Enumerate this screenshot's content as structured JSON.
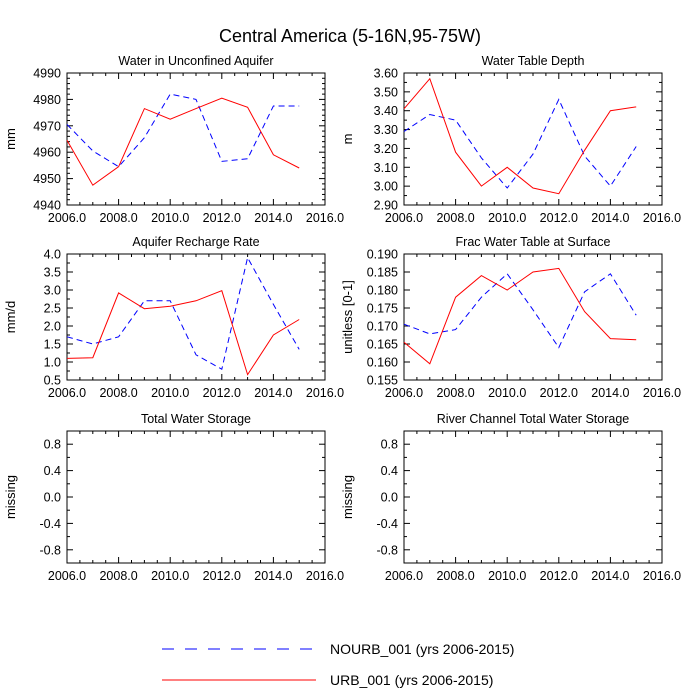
{
  "figure": {
    "title": "Central America (5-16N,95-75W)",
    "colors": {
      "NOURB_001": "#0000ff",
      "URB_001": "#ff0000",
      "axis": "#000000"
    }
  },
  "legend": {
    "placement": "bottom-center",
    "entries": [
      {
        "label": "NOURB_001 (yrs 2006-2015)",
        "color": "#0000ff",
        "style": "dashed"
      },
      {
        "label": "URB_001 (yrs 2006-2015)",
        "color": "#ff0000",
        "style": "solid"
      }
    ]
  },
  "chart_data": [
    {
      "type": "line",
      "title": "Water in Unconfined Aquifer",
      "ylabel": "mm",
      "xlim": [
        2006,
        2016
      ],
      "ylim": [
        4940,
        4990
      ],
      "xticks": [
        2006,
        2008,
        2010,
        2012,
        2014,
        2016
      ],
      "xticklabels": [
        "2006.0",
        "2008.0",
        "2010.0",
        "2012.0",
        "2014.0",
        "2016.0"
      ],
      "yticks": [
        4940,
        4950,
        4960,
        4970,
        4980,
        4990
      ],
      "yticklabels": [
        "4940",
        "4950",
        "4960",
        "4970",
        "4980",
        "4990"
      ],
      "yminor": [
        4942,
        4944,
        4946,
        4948,
        4952,
        4954,
        4956,
        4958,
        4962,
        4964,
        4966,
        4968,
        4972,
        4974,
        4976,
        4978,
        4982,
        4984,
        4986,
        4988
      ],
      "x": [
        2006,
        2007,
        2008,
        2009,
        2010,
        2011,
        2012,
        2013,
        2014,
        2015
      ],
      "series": [
        {
          "name": "NOURB_001",
          "color": "#0000ff",
          "dash": true,
          "values": [
            4970.5,
            4960.5,
            4954.5,
            4965.5,
            4982,
            4980,
            4956.5,
            4957.5,
            4977.5,
            4977.5
          ]
        },
        {
          "name": "URB_001",
          "color": "#ff0000",
          "dash": false,
          "values": [
            4964.5,
            4947.5,
            4954.5,
            4976.5,
            4972.5,
            4976.5,
            4980.5,
            4977,
            4959,
            4954
          ]
        }
      ]
    },
    {
      "type": "line",
      "title": "Water Table Depth",
      "ylabel": "m",
      "xlim": [
        2006,
        2016
      ],
      "ylim": [
        2.9,
        3.6
      ],
      "xticks": [
        2006,
        2008,
        2010,
        2012,
        2014,
        2016
      ],
      "xticklabels": [
        "2006.0",
        "2008.0",
        "2010.0",
        "2012.0",
        "2014.0",
        "2016.0"
      ],
      "yticks": [
        2.9,
        3.0,
        3.1,
        3.2,
        3.3,
        3.4,
        3.5,
        3.6
      ],
      "yticklabels": [
        "2.90",
        "3.00",
        "3.10",
        "3.20",
        "3.30",
        "3.40",
        "3.50",
        "3.60"
      ],
      "yminor": [
        2.95,
        3.05,
        3.15,
        3.25,
        3.35,
        3.45,
        3.55
      ],
      "x": [
        2006,
        2007,
        2008,
        2009,
        2010,
        2011,
        2012,
        2013,
        2014,
        2015
      ],
      "series": [
        {
          "name": "NOURB_001",
          "color": "#0000ff",
          "dash": true,
          "values": [
            3.29,
            3.38,
            3.35,
            3.15,
            2.99,
            3.17,
            3.46,
            3.16,
            3.0,
            3.21
          ]
        },
        {
          "name": "URB_001",
          "color": "#ff0000",
          "dash": false,
          "values": [
            3.41,
            3.57,
            3.18,
            3.0,
            3.1,
            2.99,
            2.96,
            3.19,
            3.4,
            3.42
          ]
        }
      ]
    },
    {
      "type": "line",
      "title": "Aquifer Recharge Rate",
      "ylabel": "mm/d",
      "xlim": [
        2006,
        2016
      ],
      "ylim": [
        0.5,
        4.0
      ],
      "xticks": [
        2006,
        2008,
        2010,
        2012,
        2014,
        2016
      ],
      "xticklabels": [
        "2006.0",
        "2008.0",
        "2010.0",
        "2012.0",
        "2014.0",
        "2016.0"
      ],
      "yticks": [
        0.5,
        1.0,
        1.5,
        2.0,
        2.5,
        3.0,
        3.5,
        4.0
      ],
      "yticklabels": [
        "0.5",
        "1.0",
        "1.5",
        "2.0",
        "2.5",
        "3.0",
        "3.5",
        "4.0"
      ],
      "yminor": [
        0.75,
        1.25,
        1.75,
        2.25,
        2.75,
        3.25,
        3.75
      ],
      "x": [
        2006,
        2007,
        2008,
        2009,
        2010,
        2011,
        2012,
        2013,
        2014,
        2015
      ],
      "series": [
        {
          "name": "NOURB_001",
          "color": "#0000ff",
          "dash": true,
          "values": [
            1.7,
            1.5,
            1.7,
            2.7,
            2.7,
            1.2,
            0.8,
            3.9,
            2.6,
            1.35
          ]
        },
        {
          "name": "URB_001",
          "color": "#ff0000",
          "dash": false,
          "values": [
            1.1,
            1.12,
            2.92,
            2.48,
            2.55,
            2.7,
            2.98,
            0.65,
            1.75,
            2.18
          ]
        }
      ]
    },
    {
      "type": "line",
      "title": "Frac Water Table at Surface",
      "ylabel": "unitless [0-1]",
      "xlim": [
        2006,
        2016
      ],
      "ylim": [
        0.155,
        0.19
      ],
      "xticks": [
        2006,
        2008,
        2010,
        2012,
        2014,
        2016
      ],
      "xticklabels": [
        "2006.0",
        "2008.0",
        "2010.0",
        "2012.0",
        "2014.0",
        "2016.0"
      ],
      "yticks": [
        0.155,
        0.16,
        0.165,
        0.17,
        0.175,
        0.18,
        0.185,
        0.19
      ],
      "yticklabels": [
        "0.155",
        "0.160",
        "0.165",
        "0.170",
        "0.175",
        "0.180",
        "0.185",
        "0.190"
      ],
      "yminor": [],
      "x": [
        2006,
        2007,
        2008,
        2009,
        2010,
        2011,
        2012,
        2013,
        2014,
        2015
      ],
      "series": [
        {
          "name": "NOURB_001",
          "color": "#0000ff",
          "dash": true,
          "values": [
            0.1705,
            0.1678,
            0.169,
            0.178,
            0.1845,
            0.1745,
            0.164,
            0.1795,
            0.1845,
            0.173
          ]
        },
        {
          "name": "URB_001",
          "color": "#ff0000",
          "dash": false,
          "values": [
            0.1655,
            0.1595,
            0.178,
            0.184,
            0.18,
            0.185,
            0.186,
            0.174,
            0.1665,
            0.1662
          ]
        }
      ]
    },
    {
      "type": "line",
      "title": "Total Water Storage",
      "ylabel": "missing",
      "xlim": [
        2006,
        2016
      ],
      "ylim": [
        -1.0,
        1.0
      ],
      "xticks": [
        2006,
        2008,
        2010,
        2012,
        2014,
        2016
      ],
      "xticklabels": [
        "2006.0",
        "2008.0",
        "2010.0",
        "2012.0",
        "2014.0",
        "2016.0"
      ],
      "yticks": [
        -0.8,
        -0.4,
        0.0,
        0.4,
        0.8
      ],
      "yticklabels": [
        "-0.8",
        "-0.4",
        "0.0",
        "0.4",
        "0.8"
      ],
      "yminor": [
        -1.0,
        -0.6,
        -0.2,
        0.2,
        0.6,
        1.0
      ],
      "x": [],
      "series": []
    },
    {
      "type": "line",
      "title": "River Channel Total Water Storage",
      "ylabel": "missing",
      "xlim": [
        2006,
        2016
      ],
      "ylim": [
        -1.0,
        1.0
      ],
      "xticks": [
        2006,
        2008,
        2010,
        2012,
        2014,
        2016
      ],
      "xticklabels": [
        "2006.0",
        "2008.0",
        "2010.0",
        "2012.0",
        "2014.0",
        "2016.0"
      ],
      "yticks": [
        -0.8,
        -0.4,
        0.0,
        0.4,
        0.8
      ],
      "yticklabels": [
        "-0.8",
        "-0.4",
        "0.0",
        "0.4",
        "0.8"
      ],
      "yminor": [
        -1.0,
        -0.6,
        -0.2,
        0.2,
        0.6,
        1.0
      ],
      "x": [],
      "series": []
    }
  ]
}
